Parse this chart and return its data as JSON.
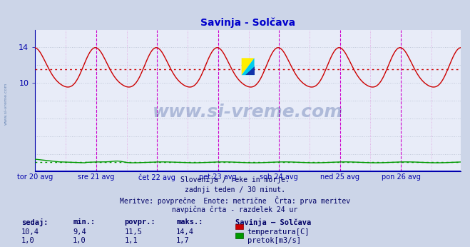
{
  "title": "Savinja - Solčava",
  "bg_color": "#ccd5e8",
  "plot_bg_color": "#e8ecf8",
  "title_color": "#0000cc",
  "title_fontsize": 10,
  "axis_color": "#0000aa",
  "text_color": "#000066",
  "avg_line_color": "#cc0000",
  "avg_value_temp": 11.5,
  "avg_value_flow": 1.1,
  "ylim": [
    0,
    16.0
  ],
  "yticks": [
    10,
    14
  ],
  "grid_h_ticks": [
    2,
    4,
    6,
    8,
    10,
    12,
    14
  ],
  "grid_color": "#c0c8d8",
  "vline_color_day": "#cc00cc",
  "vline_color_half": "#e0a0e0",
  "day_labels": [
    "tor 20 avg",
    "sre 21 avg",
    "čet 22 avg",
    "pet 23 avg",
    "sob 24 avg",
    "ned 25 avg",
    "pon 26 avg"
  ],
  "day_positions": [
    0,
    48,
    96,
    144,
    192,
    240,
    288
  ],
  "total_points": 336,
  "temp_color": "#cc0000",
  "flow_color": "#009900",
  "height_color": "#0000bb",
  "watermark": "www.si-vreme.com",
  "watermark_color": "#1a3a8a",
  "watermark_alpha": 0.28,
  "bottom_text1": "Slovenija / reke in morje.",
  "bottom_text2": "zadnji teden / 30 minut.",
  "bottom_text3": "Meritve: povprečne  Enote: metrične  Črta: prva meritev",
  "bottom_text4": "navpična črta - razdelek 24 ur",
  "stats_headers": [
    "sedaj:",
    "min.:",
    "povpr.:",
    "maks.:"
  ],
  "stats_values_temp": [
    "10,4",
    "9,4",
    "11,5",
    "14,4"
  ],
  "stats_values_flow": [
    "1,0",
    "1,0",
    "1,1",
    "1,7"
  ],
  "legend_title": "Savinja – Solčava",
  "legend_temp_label": "temperatura[C]",
  "legend_flow_label": "pretok[m3/s]",
  "side_label": "www.si-vreme.com",
  "side_label_color": "#5577aa"
}
